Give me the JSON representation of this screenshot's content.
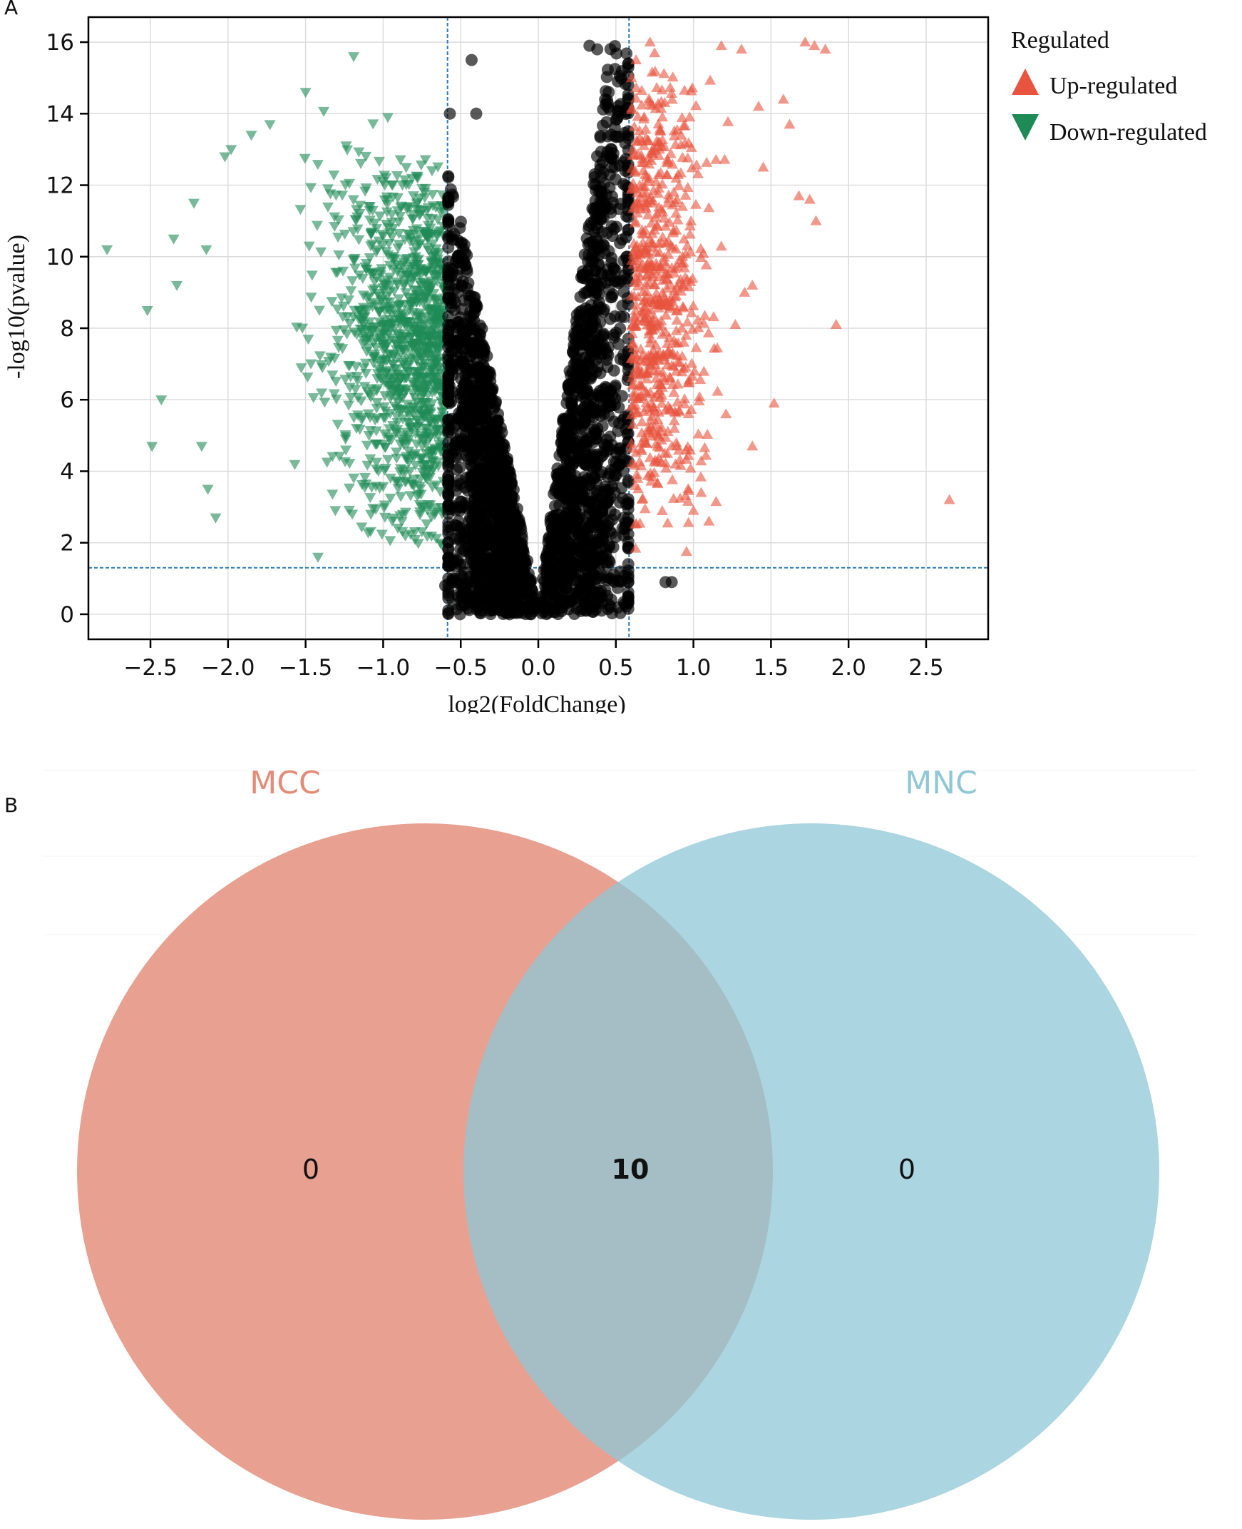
{
  "panels": {
    "a_label": "A",
    "b_label": "B"
  },
  "chart_data": [
    {
      "type": "scatter",
      "title": "",
      "xlabel": "log2(FoldChange)",
      "ylabel": "-log10(pvalue)",
      "xlim": [
        -2.9,
        2.9
      ],
      "ylim": [
        -0.7,
        16.7
      ],
      "xticks": [
        -2.5,
        -2.0,
        -1.5,
        -1.0,
        -0.5,
        0.0,
        0.5,
        1.0,
        1.5,
        2.0,
        2.5
      ],
      "xtick_labels": [
        "−2.5",
        "−2.0",
        "−1.5",
        "−1.0",
        "−0.5",
        "0.0",
        "0.5",
        "1.0",
        "1.5",
        "2.0",
        "2.5"
      ],
      "yticks": [
        0,
        2,
        4,
        6,
        8,
        10,
        12,
        14,
        16
      ],
      "ytick_labels": [
        "0",
        "2",
        "4",
        "6",
        "8",
        "10",
        "12",
        "14",
        "16"
      ],
      "grid": true,
      "thresholds": {
        "log2fc": [
          -0.585,
          0.585
        ],
        "neg_log10_p": 1.3
      },
      "legend": {
        "title": "Regulated",
        "placement": "outside-right",
        "entries": [
          {
            "label": "Up-regulated",
            "marker": "triangle-up",
            "color": "#e8543e"
          },
          {
            "label": "Down-regulated",
            "marker": "triangle-down",
            "color": "#1e8a55"
          }
        ]
      },
      "series": [
        {
          "name": "Up-regulated",
          "color": "#e8543e",
          "marker": "triangle-up",
          "points": [
            [
              2.65,
              3.2
            ],
            [
              1.92,
              8.1
            ],
            [
              1.85,
              15.8
            ],
            [
              1.78,
              15.9
            ],
            [
              1.72,
              16.0
            ],
            [
              1.68,
              11.7
            ],
            [
              1.75,
              11.6
            ],
            [
              1.79,
              11.0
            ],
            [
              1.52,
              5.9
            ],
            [
              1.38,
              4.7
            ],
            [
              1.42,
              14.2
            ],
            [
              1.45,
              12.5
            ],
            [
              1.58,
              14.4
            ],
            [
              1.62,
              13.7
            ],
            [
              1.31,
              15.8
            ],
            [
              1.18,
              15.9
            ],
            [
              0.72,
              16.0
            ],
            [
              0.75,
              15.7
            ],
            [
              0.63,
              15.5
            ],
            [
              1.27,
              8.1
            ],
            [
              1.33,
              9.0
            ],
            [
              1.38,
              9.2
            ],
            [
              1.21,
              5.6
            ],
            [
              1.05,
              3.4
            ],
            [
              1.1,
              2.6
            ],
            [
              1.0,
              2.9
            ]
          ]
        },
        {
          "name": "Down-regulated",
          "color": "#1e8a55",
          "marker": "triangle-down",
          "points": [
            [
              -2.78,
              10.2
            ],
            [
              -2.52,
              8.5
            ],
            [
              -2.43,
              6.0
            ],
            [
              -2.49,
              4.7
            ],
            [
              -2.33,
              9.2
            ],
            [
              -2.35,
              10.5
            ],
            [
              -2.14,
              10.2
            ],
            [
              -2.17,
              4.7
            ],
            [
              -2.13,
              3.5
            ],
            [
              -2.22,
              11.5
            ],
            [
              -2.08,
              2.7
            ],
            [
              -2.02,
              12.8
            ],
            [
              -1.98,
              13.0
            ],
            [
              -1.85,
              13.4
            ],
            [
              -1.73,
              13.7
            ],
            [
              -1.5,
              14.6
            ],
            [
              -1.19,
              15.6
            ],
            [
              -0.97,
              13.9
            ],
            [
              -1.42,
              1.6
            ]
          ]
        },
        {
          "name": "",
          "color": "#000000",
          "marker": "circle",
          "points": [
            [
              0.82,
              0.9
            ],
            [
              0.86,
              0.9
            ],
            [
              -0.43,
              15.5
            ],
            [
              -0.4,
              14.0
            ],
            [
              0.33,
              15.9
            ],
            [
              0.38,
              15.8
            ],
            [
              -0.57,
              14.0
            ],
            [
              -0.6,
              0.8
            ]
          ]
        }
      ]
    },
    {
      "type": "venn",
      "sets": [
        {
          "name": "MCC",
          "color": "#e38b77",
          "only_count": "0"
        },
        {
          "name": "MNC",
          "color": "#8fc7d6",
          "only_count": "0"
        }
      ],
      "intersection_count": "10"
    }
  ]
}
